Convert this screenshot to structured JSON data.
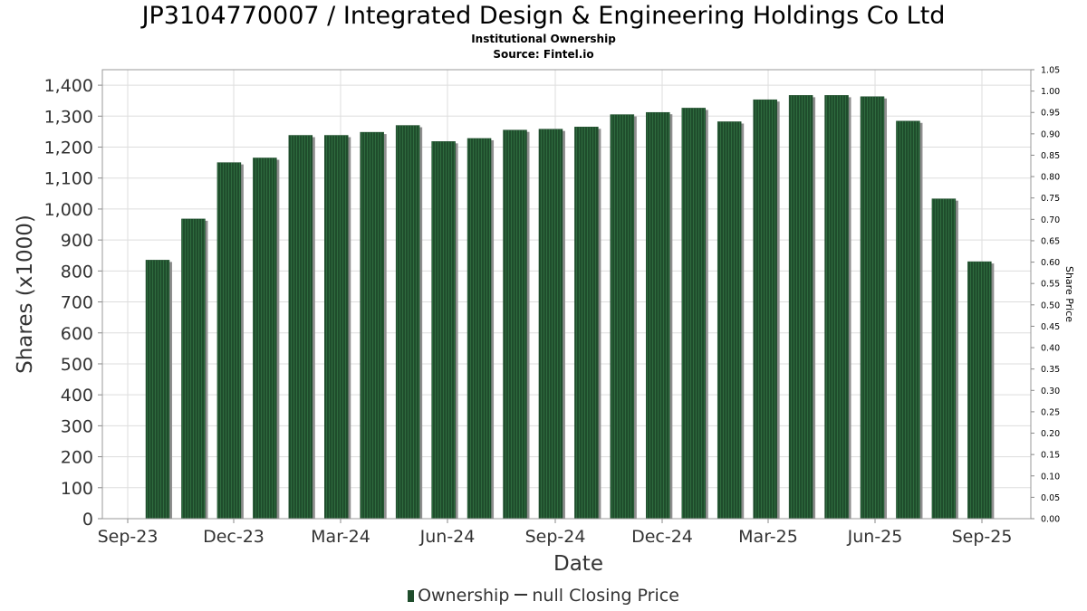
{
  "header": {
    "title": "JP3104770007 / Integrated Design & Engineering Holdings Co Ltd",
    "subtitle": "Institutional Ownership",
    "source": "Source: Fintel.io"
  },
  "legend": {
    "items": [
      {
        "label": "Ownership",
        "marker": "bar-swatch"
      },
      {
        "label": "null Closing Price",
        "marker": "line-swatch"
      }
    ]
  },
  "colors": {
    "bar": "#1f4d2c",
    "bar_stripe": "#2e6b3e",
    "bar_shadow": "#8f8f8f",
    "grid": "#dddddd",
    "axis_text": "#333333"
  },
  "chart_data": {
    "type": "bar",
    "xlabel": "Date",
    "ylabel": "Shares (x1000)",
    "y2label": "Share Price",
    "ylim": [
      0,
      1450
    ],
    "y2lim": [
      0,
      1.05
    ],
    "yticks": [
      0,
      100,
      200,
      300,
      400,
      500,
      600,
      700,
      800,
      900,
      1000,
      1100,
      1200,
      1300,
      1400
    ],
    "y2ticks": [
      "0.00",
      "0.05",
      "0.10",
      "0.15",
      "0.20",
      "0.25",
      "0.30",
      "0.35",
      "0.40",
      "0.45",
      "0.50",
      "0.55",
      "0.60",
      "0.65",
      "0.70",
      "0.75",
      "0.80",
      "0.85",
      "0.90",
      "0.95",
      "1.00",
      "1.05"
    ],
    "xticks": [
      "Sep-23",
      "Dec-23",
      "Mar-24",
      "Jun-24",
      "Sep-24",
      "Dec-24",
      "Mar-25",
      "Jun-25",
      "Sep-25"
    ],
    "grid": true,
    "legend_position": "bottom-center",
    "series": [
      {
        "name": "Ownership",
        "values": [
          835,
          968,
          1150,
          1165,
          1238,
          1238,
          1248,
          1270,
          1218,
          1228,
          1255,
          1258,
          1265,
          1305,
          1312,
          1326,
          1282,
          1353,
          1367,
          1367,
          1363,
          1284,
          1033,
          830
        ]
      },
      {
        "name": "null Closing Price",
        "values": []
      }
    ]
  }
}
